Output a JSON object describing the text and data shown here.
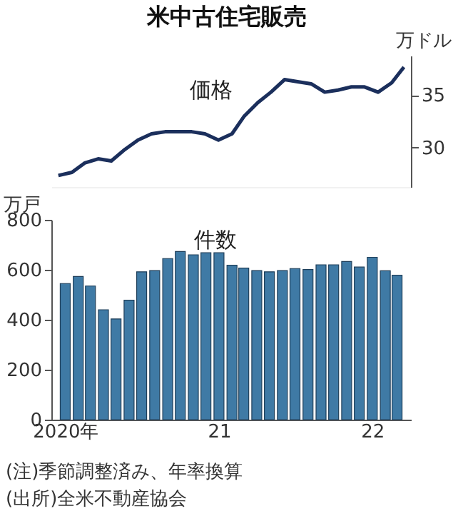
{
  "chart_data": [
    {
      "type": "line",
      "title": "米中古住宅販売",
      "ylabel": "万ドル",
      "grid": false,
      "tick_labels": "y",
      "x": [
        "2020-01",
        "2020-02",
        "2020-03",
        "2020-04",
        "2020-05",
        "2020-06",
        "2020-07",
        "2020-08",
        "2020-09",
        "2020-10",
        "2020-11",
        "2020-12",
        "2021-01",
        "2021-02",
        "2021-03",
        "2021-04",
        "2021-05",
        "2021-06",
        "2021-07",
        "2021-08",
        "2021-09",
        "2021-10",
        "2021-11",
        "2021-12",
        "2022-01",
        "2022-02",
        "2022-03"
      ],
      "xlim": [
        "2019-12-16",
        "2022-03-17"
      ],
      "xticks": [
        {
          "value": "2020-01",
          "label": null
        },
        {
          "value": "2021-01",
          "label": null
        },
        {
          "value": "2022-01",
          "label": null
        }
      ],
      "ylim": [
        26.2,
        38.8
      ],
      "yticks": [
        30,
        35
      ],
      "series": [
        {
          "name": "価格",
          "color": "#1b2f5c",
          "values": [
            27.3,
            27.6,
            28.5,
            28.9,
            28.7,
            29.8,
            30.7,
            31.3,
            31.5,
            31.5,
            31.5,
            31.3,
            30.7,
            31.3,
            33.0,
            34.3,
            35.3,
            36.5,
            36.3,
            36.1,
            35.3,
            35.5,
            35.8,
            35.8,
            35.3,
            36.2,
            37.7
          ]
        }
      ]
    },
    {
      "type": "bar",
      "ylabel": "万戸",
      "grid": false,
      "x": [
        "2020-01",
        "2020-02",
        "2020-03",
        "2020-04",
        "2020-05",
        "2020-06",
        "2020-07",
        "2020-08",
        "2020-09",
        "2020-10",
        "2020-11",
        "2020-12",
        "2021-01",
        "2021-02",
        "2021-03",
        "2021-04",
        "2021-05",
        "2021-06",
        "2021-07",
        "2021-08",
        "2021-09",
        "2021-10",
        "2021-11",
        "2021-12",
        "2022-01",
        "2022-02",
        "2022-03"
      ],
      "xlim": [
        "2019-12-16",
        "2022-03-17"
      ],
      "xticks": [
        {
          "value": "2020-01",
          "label": "2020年"
        },
        {
          "value": "2021-01",
          "label": "21"
        },
        {
          "value": "2022-01",
          "label": "22"
        }
      ],
      "ylim": [
        0,
        800
      ],
      "yticks": [
        0,
        200,
        400,
        600,
        800
      ],
      "series": [
        {
          "name": "件数",
          "color": "#3f7aa5",
          "values": [
            545,
            573,
            535,
            440,
            403,
            478,
            592,
            597,
            645,
            673,
            660,
            668,
            668,
            618,
            607,
            597,
            592,
            597,
            605,
            601,
            620,
            620,
            633,
            611,
            650,
            596,
            578
          ]
        }
      ],
      "annotations": [
        "(注)季節調整済み、年率換算",
        "(出所)全米不動産協会"
      ]
    }
  ]
}
